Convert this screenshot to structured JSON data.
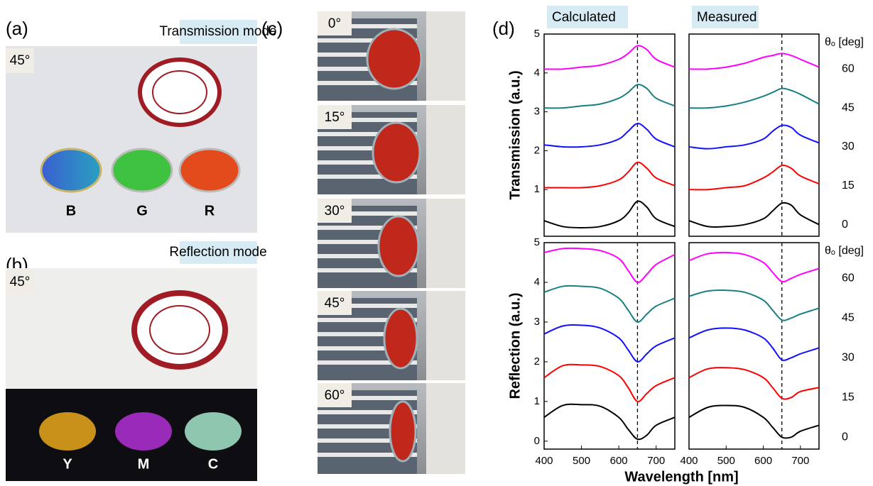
{
  "panels": {
    "a": {
      "label": "(a)",
      "mode": "Transmission mode",
      "angle": "45°",
      "samples": [
        "B",
        "G",
        "R"
      ]
    },
    "b": {
      "label": "(b)",
      "mode": "Reflection mode",
      "angle": "45°",
      "samples": [
        "Y",
        "M",
        "C"
      ]
    },
    "c": {
      "label": "(c)",
      "angles": [
        "0°",
        "15°",
        "30°",
        "45°",
        "60°"
      ]
    },
    "d": {
      "label": "(d)"
    }
  },
  "chart_data": [
    {
      "type": "line",
      "title": "Calculated",
      "ylabel": "Transmission (a.u.)",
      "x": [
        400,
        450,
        500,
        550,
        600,
        625,
        650,
        675,
        700,
        750
      ],
      "xlim": [
        400,
        750
      ],
      "ylim": [
        -0.2,
        5
      ],
      "yticks": [
        1,
        2,
        3,
        4,
        5
      ],
      "vline": 650,
      "series": [
        {
          "color": "#000000",
          "values": [
            0.2,
            0.05,
            0.02,
            0.05,
            0.2,
            0.4,
            0.7,
            0.55,
            0.25,
            0.05
          ]
        },
        {
          "color": "#ff0000",
          "values": [
            1.05,
            1.05,
            1.05,
            1.1,
            1.25,
            1.45,
            1.7,
            1.55,
            1.3,
            1.1
          ]
        },
        {
          "color": "#1010ff",
          "values": [
            2.15,
            2.1,
            2.1,
            2.15,
            2.3,
            2.5,
            2.7,
            2.55,
            2.3,
            2.1
          ]
        },
        {
          "color": "#1a7f7f",
          "values": [
            3.1,
            3.1,
            3.15,
            3.2,
            3.35,
            3.5,
            3.7,
            3.6,
            3.35,
            3.15
          ]
        },
        {
          "color": "#ff00ff",
          "values": [
            4.1,
            4.1,
            4.15,
            4.2,
            4.35,
            4.5,
            4.7,
            4.6,
            4.35,
            4.15
          ]
        }
      ]
    },
    {
      "type": "line",
      "title": "Measured",
      "legend_title": "θₒ [deg]",
      "x": [
        400,
        450,
        500,
        550,
        600,
        625,
        650,
        675,
        700,
        750
      ],
      "xlim": [
        400,
        750
      ],
      "ylim": [
        -0.2,
        5
      ],
      "vline": 650,
      "series": [
        {
          "name": "0",
          "color": "#000000",
          "values": [
            0.2,
            0.05,
            0.05,
            0.1,
            0.25,
            0.45,
            0.65,
            0.6,
            0.35,
            0.1
          ]
        },
        {
          "name": "15",
          "color": "#ff0000",
          "values": [
            1.0,
            1.0,
            1.05,
            1.1,
            1.3,
            1.45,
            1.62,
            1.55,
            1.35,
            1.15
          ]
        },
        {
          "name": "30",
          "color": "#1010ff",
          "values": [
            2.1,
            2.05,
            2.1,
            2.15,
            2.3,
            2.5,
            2.65,
            2.6,
            2.4,
            2.2
          ]
        },
        {
          "name": "45",
          "color": "#1a7f7f",
          "values": [
            3.1,
            3.1,
            3.15,
            3.25,
            3.4,
            3.5,
            3.6,
            3.55,
            3.45,
            3.2
          ]
        },
        {
          "name": "60",
          "color": "#ff00ff",
          "values": [
            4.1,
            4.1,
            4.15,
            4.25,
            4.4,
            4.45,
            4.5,
            4.45,
            4.35,
            4.15
          ]
        }
      ]
    },
    {
      "type": "line",
      "ylabel": "Reflection (a.u.)",
      "xlabel": "Wavelength [nm]",
      "x": [
        400,
        450,
        500,
        550,
        600,
        625,
        650,
        675,
        700,
        750
      ],
      "xlim": [
        400,
        750
      ],
      "ylim": [
        -0.2,
        5
      ],
      "xticks": [
        400,
        500,
        600,
        700
      ],
      "yticks": [
        0,
        1,
        2,
        3,
        4,
        5
      ],
      "vline": 650,
      "series": [
        {
          "color": "#000000",
          "values": [
            0.6,
            0.9,
            0.92,
            0.88,
            0.6,
            0.3,
            0.05,
            0.15,
            0.4,
            0.6
          ]
        },
        {
          "color": "#ff0000",
          "values": [
            1.6,
            1.9,
            1.92,
            1.88,
            1.65,
            1.35,
            1.0,
            1.2,
            1.4,
            1.6
          ]
        },
        {
          "color": "#1010ff",
          "values": [
            2.7,
            2.9,
            2.92,
            2.85,
            2.6,
            2.3,
            2.0,
            2.2,
            2.4,
            2.6
          ]
        },
        {
          "color": "#1a7f7f",
          "values": [
            3.75,
            3.9,
            3.9,
            3.85,
            3.6,
            3.3,
            3.0,
            3.2,
            3.4,
            3.6
          ]
        },
        {
          "color": "#ff00ff",
          "values": [
            4.75,
            4.85,
            4.85,
            4.8,
            4.6,
            4.3,
            4.0,
            4.2,
            4.45,
            4.7
          ]
        }
      ]
    },
    {
      "type": "line",
      "legend_title": "θₒ [deg]",
      "x": [
        400,
        450,
        500,
        550,
        600,
        625,
        650,
        675,
        700,
        750
      ],
      "xlim": [
        400,
        750
      ],
      "ylim": [
        -0.2,
        5
      ],
      "xticks": [
        400,
        500,
        600,
        700
      ],
      "vline": 650,
      "series": [
        {
          "name": "0",
          "color": "#000000",
          "values": [
            0.6,
            0.85,
            0.9,
            0.85,
            0.6,
            0.35,
            0.1,
            0.1,
            0.25,
            0.4
          ]
        },
        {
          "name": "15",
          "color": "#ff0000",
          "values": [
            1.6,
            1.82,
            1.85,
            1.8,
            1.6,
            1.35,
            1.08,
            1.1,
            1.25,
            1.35
          ]
        },
        {
          "name": "30",
          "color": "#1010ff",
          "values": [
            2.6,
            2.8,
            2.85,
            2.8,
            2.6,
            2.35,
            2.05,
            2.1,
            2.2,
            2.35
          ]
        },
        {
          "name": "45",
          "color": "#1a7f7f",
          "values": [
            3.65,
            3.78,
            3.8,
            3.75,
            3.55,
            3.3,
            3.05,
            3.1,
            3.2,
            3.35
          ]
        },
        {
          "name": "60",
          "color": "#ff00ff",
          "values": [
            4.55,
            4.72,
            4.75,
            4.7,
            4.5,
            4.25,
            4.02,
            4.1,
            4.2,
            4.35
          ]
        }
      ]
    }
  ]
}
